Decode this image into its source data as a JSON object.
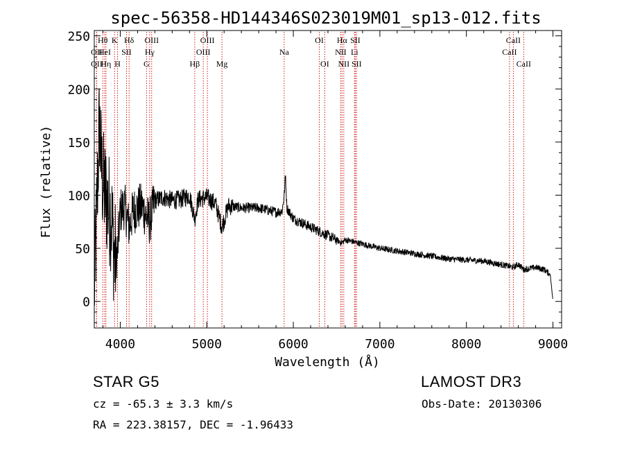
{
  "chart_data": {
    "type": "line",
    "title": "spec-56358-HD144346S023019M01_sp13-012.fits",
    "xlabel": "Wavelength (Å)",
    "ylabel": "Flux (relative)",
    "xlim": [
      3700,
      9100
    ],
    "ylim": [
      -25,
      255
    ],
    "xticks": [
      4000,
      5000,
      6000,
      7000,
      8000,
      9000
    ],
    "yticks": [
      0,
      50,
      100,
      150,
      200,
      250
    ],
    "series": [
      {
        "name": "flux",
        "anchors": [
          [
            3700,
            10
          ],
          [
            3720,
            60
          ],
          [
            3740,
            120
          ],
          [
            3760,
            170
          ],
          [
            3780,
            130
          ],
          [
            3800,
            110
          ],
          [
            3830,
            100
          ],
          [
            3860,
            90
          ],
          [
            3900,
            80
          ],
          [
            3933,
            40
          ],
          [
            3968,
            45
          ],
          [
            4000,
            85
          ],
          [
            4050,
            90
          ],
          [
            4102,
            70
          ],
          [
            4150,
            85
          ],
          [
            4200,
            88
          ],
          [
            4250,
            90
          ],
          [
            4300,
            80
          ],
          [
            4340,
            75
          ],
          [
            4400,
            95
          ],
          [
            4500,
            98
          ],
          [
            4600,
            95
          ],
          [
            4700,
            96
          ],
          [
            4800,
            100
          ],
          [
            4861,
            78
          ],
          [
            4900,
            96
          ],
          [
            5000,
            98
          ],
          [
            5100,
            92
          ],
          [
            5175,
            70
          ],
          [
            5250,
            90
          ],
          [
            5400,
            88
          ],
          [
            5600,
            88
          ],
          [
            5800,
            84
          ],
          [
            5870,
            85
          ],
          [
            5895,
            100
          ],
          [
            5910,
            120
          ],
          [
            5925,
            88
          ],
          [
            6000,
            78
          ],
          [
            6200,
            70
          ],
          [
            6400,
            62
          ],
          [
            6563,
            55
          ],
          [
            6600,
            58
          ],
          [
            7000,
            50
          ],
          [
            7400,
            45
          ],
          [
            7800,
            40
          ],
          [
            8200,
            38
          ],
          [
            8498,
            33
          ],
          [
            8542,
            32
          ],
          [
            8600,
            35
          ],
          [
            8662,
            30
          ],
          [
            8800,
            32
          ],
          [
            8900,
            30
          ],
          [
            8970,
            25
          ],
          [
            9000,
            0
          ]
        ]
      }
    ],
    "lines": [
      {
        "label": "OII",
        "wave": 3727,
        "tier": 2
      },
      {
        "label": "OII",
        "wave": 3727,
        "tier": 3
      },
      {
        "label": "Hθ",
        "wave": 3798,
        "tier": 1
      },
      {
        "label": "HeI",
        "wave": 3820,
        "tier": 2
      },
      {
        "label": "Hη",
        "wave": 3835,
        "tier": 3
      },
      {
        "label": "K",
        "wave": 3934,
        "tier": 1
      },
      {
        "label": "H",
        "wave": 3969,
        "tier": 3
      },
      {
        "label": "SII",
        "wave": 4072,
        "tier": 2
      },
      {
        "label": "Hδ",
        "wave": 4102,
        "tier": 1
      },
      {
        "label": "G",
        "wave": 4304,
        "tier": 3
      },
      {
        "label": "Hγ",
        "wave": 4340,
        "tier": 2
      },
      {
        "label": "OIII",
        "wave": 4363,
        "tier": 1
      },
      {
        "label": "Hβ",
        "wave": 4861,
        "tier": 3
      },
      {
        "label": "OIII",
        "wave": 4959,
        "tier": 2
      },
      {
        "label": "OIII",
        "wave": 5007,
        "tier": 1
      },
      {
        "label": "Mg",
        "wave": 5175,
        "tier": 3
      },
      {
        "label": "Na",
        "wave": 5894,
        "tier": 2
      },
      {
        "label": "OI",
        "wave": 6300,
        "tier": 1
      },
      {
        "label": "OI",
        "wave": 6363,
        "tier": 3
      },
      {
        "label": "NII",
        "wave": 6548,
        "tier": 2
      },
      {
        "label": "Hα",
        "wave": 6563,
        "tier": 1
      },
      {
        "label": "NII",
        "wave": 6583,
        "tier": 3
      },
      {
        "label": "Li",
        "wave": 6707,
        "tier": 2
      },
      {
        "label": "SII",
        "wave": 6716,
        "tier": 1
      },
      {
        "label": "SII",
        "wave": 6731,
        "tier": 3
      },
      {
        "label": "CaII",
        "wave": 8498,
        "tier": 2
      },
      {
        "label": "CaII",
        "wave": 8542,
        "tier": 1
      },
      {
        "label": "CaII",
        "wave": 8662,
        "tier": 3
      }
    ],
    "grid": false,
    "legend": "none"
  },
  "footer": {
    "star_class": "STAR    G5",
    "cz": "cz = -65.3 ± 3.3 km/s",
    "radec": "RA = 223.38157, DEC =  -1.96433",
    "survey": "LAMOST DR3",
    "obs_date": "Obs-Date: 20130306"
  },
  "colors": {
    "spectrum": "#000000",
    "line_marker": "#cc0000",
    "axes": "#000000"
  }
}
